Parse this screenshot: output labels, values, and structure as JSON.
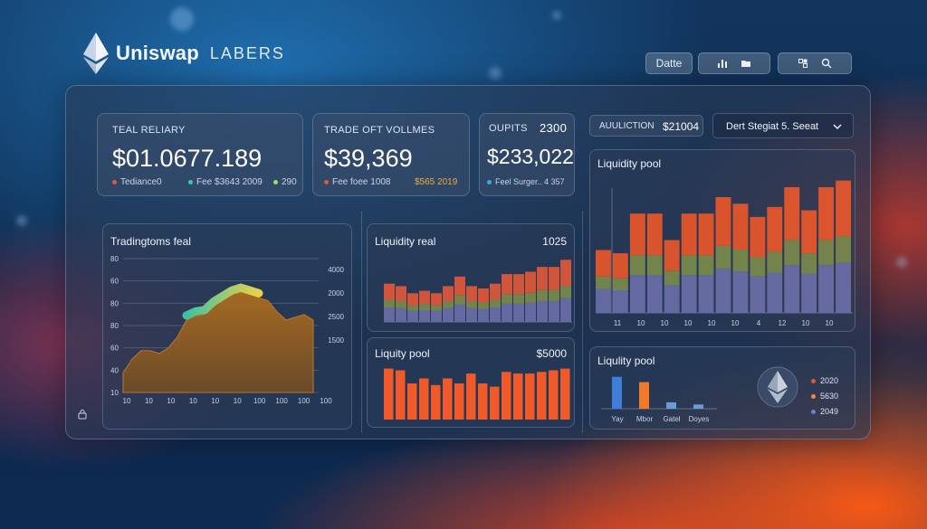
{
  "brand": {
    "name": "Uniswap",
    "sub": "LABERS"
  },
  "toolbar": {
    "date_label": "Datte",
    "icons": [
      "bar-chart-icon",
      "folder-icon",
      "grid-icon",
      "search-icon"
    ]
  },
  "stats": [
    {
      "title": "TEAL RELIARY",
      "value": "$01.0677.189",
      "metrics": [
        {
          "label": "Tediance0",
          "color": "#e0583a"
        },
        {
          "label": "Fee $3643 2009",
          "color": "#3ec9a8"
        },
        {
          "label": "290",
          "color": "#9be05e"
        }
      ]
    },
    {
      "title": "TRADE OFT VOLLMES",
      "value": "$39,369",
      "metrics": [
        {
          "label": "Fee foee 1008",
          "color": "#e0583a"
        },
        {
          "label": "$565 2019",
          "color": "#f0a93a"
        }
      ]
    },
    {
      "title": "OUPITS",
      "title_value": "2300",
      "value": "$233,022",
      "metrics": [
        {
          "label": "Feel Surger.. 4 357",
          "color": "#3fa8e0"
        }
      ]
    }
  ],
  "auction": {
    "label": "AUULICTION",
    "value": "$21004"
  },
  "dropdown": {
    "value": "Dert Stegiat 5. Seeat"
  },
  "trading": {
    "title": "Tradingtoms feal",
    "y_left": [
      "80",
      "60",
      "80",
      "80",
      "60",
      "40",
      "10"
    ],
    "y_right": [
      "4000",
      "2000",
      "2500",
      "1500"
    ],
    "x_ticks": [
      "10",
      "10",
      "10",
      "10",
      "10",
      "10",
      "100",
      "100",
      "100",
      "100"
    ]
  },
  "liquidity_real": {
    "title": "Liquidity real",
    "value": "1025"
  },
  "liquidity_pool_small": {
    "title": "Liquity pool",
    "value": "$5000"
  },
  "liquidity_pool_big": {
    "title": "Liquidity pool",
    "x_ticks": [
      "11",
      "10",
      "10",
      "10",
      "10",
      "10",
      "4",
      "12",
      "10",
      "10"
    ]
  },
  "liquidity_pool_legend": {
    "title": "Liqulity pool",
    "x_ticks": [
      "Yay",
      "Mbor",
      "Gatel",
      "Doyes"
    ],
    "legend": [
      {
        "label": "2020",
        "color": "#e0583a"
      },
      {
        "label": "5630",
        "color": "#f08a3a"
      },
      {
        "label": "2049",
        "color": "#6a82c8"
      }
    ]
  },
  "chart_data": [
    {
      "type": "area",
      "title": "Tradingtoms feal",
      "x": [
        0,
        1,
        2,
        3,
        4,
        5,
        6,
        7,
        8,
        9,
        10,
        11,
        12,
        13,
        14,
        15,
        16,
        17,
        18,
        19,
        20,
        21
      ],
      "values": [
        14,
        24,
        30,
        30,
        28,
        32,
        40,
        52,
        55,
        56,
        62,
        66,
        70,
        72,
        70,
        68,
        66,
        58,
        52,
        54,
        56,
        52
      ],
      "colors": {
        "fill": "#8a5a1e",
        "highlight": [
          "#3ec9a8",
          "#f5d94a"
        ]
      }
    },
    {
      "type": "bar",
      "title": "Liquidity real",
      "stacked": true,
      "values_total": [
        32,
        30,
        24,
        26,
        24,
        30,
        38,
        30,
        28,
        32,
        40,
        40,
        42,
        46,
        46,
        52
      ],
      "colors": [
        "#6a6fa8",
        "#7a8a4c",
        "#e0583a"
      ]
    },
    {
      "type": "bar",
      "title": "Liquity pool",
      "values": [
        62,
        60,
        44,
        50,
        42,
        50,
        44,
        56,
        44,
        40,
        58,
        56,
        56,
        58,
        60,
        62
      ],
      "colors": [
        "#f05a2a"
      ]
    },
    {
      "type": "bar",
      "title": "Liquidity pool",
      "stacked": true,
      "values_total": [
        38,
        36,
        60,
        60,
        44,
        60,
        60,
        70,
        66,
        58,
        64,
        76,
        62,
        76,
        80
      ],
      "colors": [
        "#6a6fa8",
        "#7a8a4c",
        "#e8572a"
      ]
    },
    {
      "type": "bar",
      "title": "Liqulity pool",
      "categories": [
        "Yay",
        "Mbor",
        "Gatel",
        "Doyes"
      ],
      "series": [
        {
          "name": "2020",
          "values": [
            30,
            0,
            6,
            4
          ]
        },
        {
          "name": "5630",
          "values": [
            0,
            25,
            0,
            0
          ]
        }
      ]
    }
  ]
}
